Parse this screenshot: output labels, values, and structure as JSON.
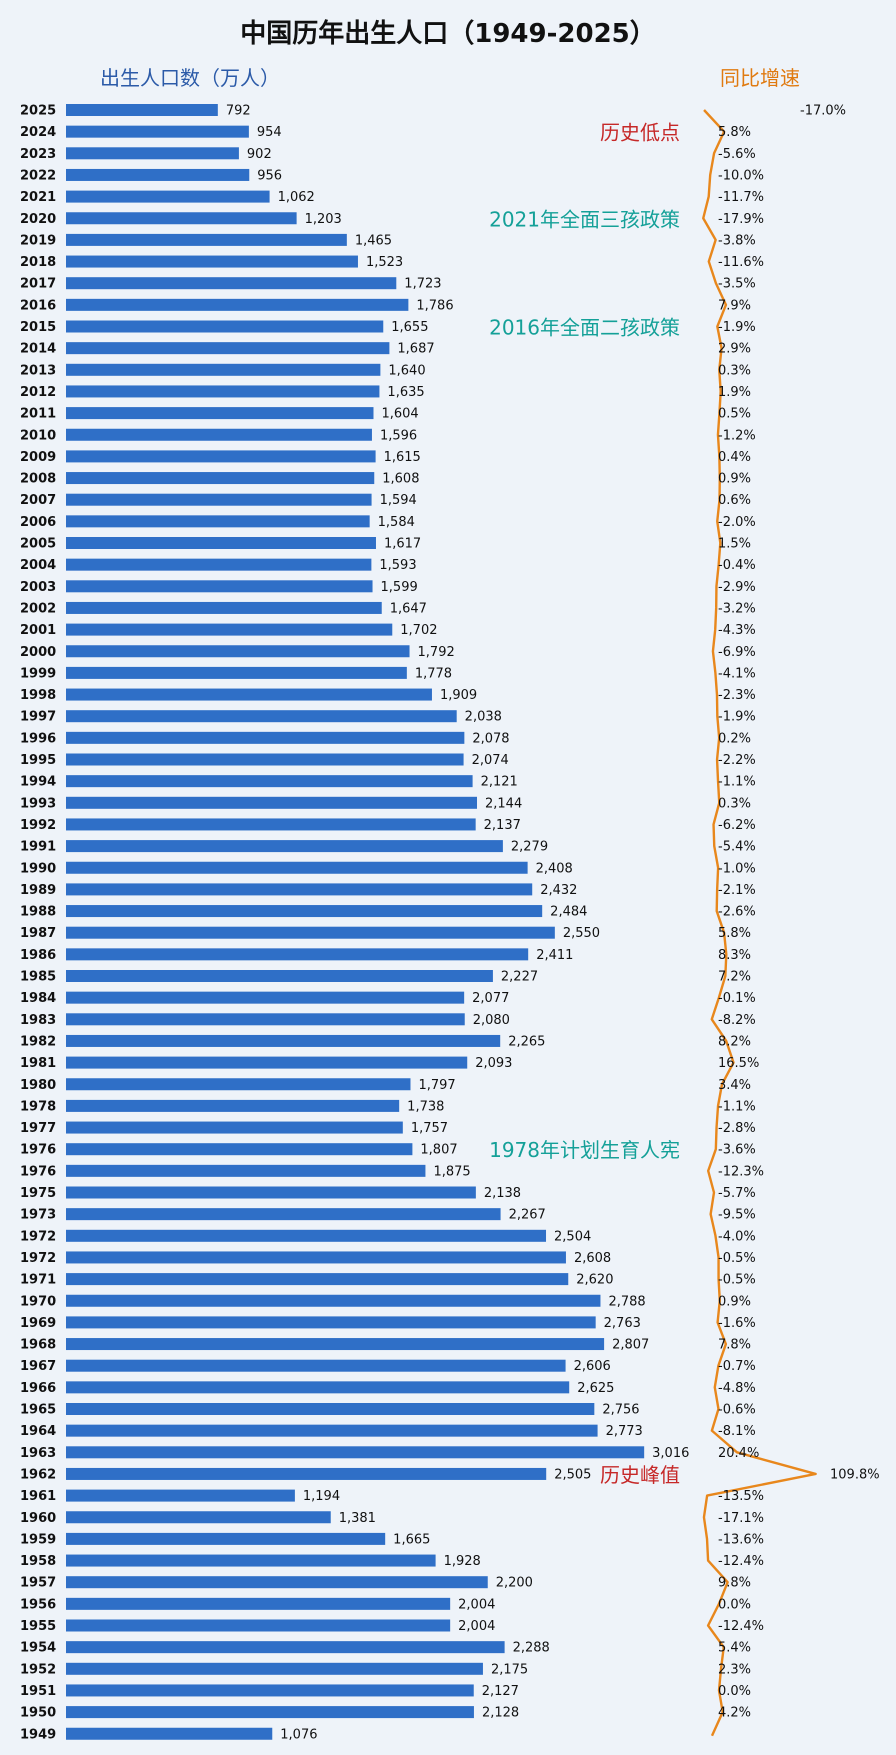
{
  "title": "中国历年出生人口（1949-2025）",
  "chart_data": {
    "type": "bar",
    "orientation": "horizontal",
    "title": "中国历年出生人口（1949-2025）",
    "left_axis_label": "出生人口数（万人）",
    "right_axis_label": "同比增速",
    "categories": [
      "2025",
      "2024",
      "2023",
      "2022",
      "2021",
      "2020",
      "2019",
      "2018",
      "2017",
      "2016",
      "2015",
      "2014",
      "2013",
      "2012",
      "2011",
      "2010",
      "2009",
      "2008",
      "2007",
      "2006",
      "2005",
      "2004",
      "2003",
      "2002",
      "2001",
      "2000",
      "1999",
      "1998",
      "1997",
      "1996",
      "1995",
      "1994",
      "1993",
      "1992",
      "1991",
      "1990",
      "1989",
      "1988",
      "1987",
      "1986",
      "1985",
      "1984",
      "1983",
      "1982",
      "1981",
      "1980",
      "1978",
      "1977",
      "1976",
      "1976",
      "1975",
      "1973",
      "1972",
      "1972",
      "1971",
      "1970",
      "1969",
      "1968",
      "1967",
      "1966",
      "1965",
      "1964",
      "1963",
      "1962",
      "1961",
      "1960",
      "1959",
      "1958",
      "1957",
      "1956",
      "1955",
      "1954",
      "1952",
      "1951",
      "1950",
      "1949"
    ],
    "series": [
      {
        "name": "出生人口数（万人）",
        "values": [
          792,
          954,
          902,
          956,
          1062,
          1203,
          1465,
          1523,
          1723,
          1786,
          1655,
          1687,
          1640,
          1635,
          1604,
          1596,
          1615,
          1608,
          1594,
          1584,
          1617,
          1593,
          1599,
          1647,
          1702,
          1792,
          1778,
          1909,
          2038,
          2078,
          2074,
          2121,
          2144,
          2137,
          2279,
          2408,
          2432,
          2484,
          2550,
          2411,
          2227,
          2077,
          2080,
          2265,
          2093,
          1797,
          1738,
          1757,
          1807,
          1875,
          2138,
          2267,
          2504,
          2608,
          2620,
          2788,
          2763,
          2807,
          2606,
          2625,
          2756,
          2773,
          3016,
          2505,
          1194,
          1381,
          1665,
          1928,
          2200,
          2004,
          2004,
          2288,
          2175,
          2127,
          2128,
          1076
        ],
        "labels": [
          "792",
          "954",
          "902",
          "956",
          "1,062",
          "1,203",
          "1,465",
          "1,523",
          "1,723",
          "1,786",
          "1,655",
          "1,687",
          "1,640",
          "1,635",
          "1,604",
          "1,596",
          "1,615",
          "1,608",
          "1,594",
          "1,584",
          "1,617",
          "1,593",
          "1,599",
          "1,647",
          "1,702",
          "1,792",
          "1,778",
          "1,909",
          "2,038",
          "2,078",
          "2,074",
          "2,121",
          "2,144",
          "2,137",
          "2,279",
          "2,408",
          "2,432",
          "2,484",
          "2,550",
          "2,411",
          "2,227",
          "2,077",
          "2,080",
          "2,265",
          "2,093",
          "1,797",
          "1,738",
          "1,757",
          "1,807",
          "1,875",
          "2,138",
          "2,267",
          "2,504",
          "2,608",
          "2,620",
          "2,788",
          "2,763",
          "2,807",
          "2,606",
          "2,625",
          "2,756",
          "2,773",
          "3,016",
          "2,505",
          "1,194",
          "1,381",
          "1,665",
          "1,928",
          "2,200",
          "2,004",
          "2,004",
          "2,288",
          "2,175",
          "2,127",
          "2,128",
          "1,076"
        ]
      },
      {
        "name": "同比增速",
        "values": [
          -17.0,
          5.8,
          -5.6,
          -10.0,
          -11.7,
          -17.9,
          -3.8,
          -11.6,
          -3.5,
          7.9,
          -1.9,
          2.9,
          0.3,
          1.9,
          0.5,
          -1.2,
          0.4,
          0.9,
          0.6,
          -2.0,
          1.5,
          -0.4,
          -2.9,
          -3.2,
          -4.3,
          -6.9,
          -4.1,
          -2.3,
          -1.9,
          0.2,
          -2.2,
          -1.1,
          0.3,
          -6.2,
          -5.4,
          -1.0,
          -2.1,
          -2.6,
          5.8,
          8.3,
          7.2,
          -0.1,
          -8.2,
          8.2,
          16.5,
          3.4,
          -1.1,
          -2.8,
          -3.6,
          -12.3,
          -5.7,
          -9.5,
          -4.0,
          -0.5,
          -0.5,
          0.9,
          -1.6,
          7.8,
          -0.7,
          -4.8,
          -0.6,
          -8.1,
          20.4,
          109.8,
          -13.5,
          -17.1,
          -13.6,
          -12.4,
          9.8,
          0.0,
          -12.4,
          5.4,
          2.3,
          0.0,
          4.2,
          null
        ],
        "labels": [
          "-17.0%",
          "5.8%",
          "-5.6%",
          "-10.0%",
          "-11.7%",
          "-17.9%",
          "-3.8%",
          "-11.6%",
          "-3.5%",
          "7.9%",
          "-1.9%",
          "2.9%",
          "0.3%",
          "1.9%",
          "0.5%",
          "-1.2%",
          "0.4%",
          "0.9%",
          "0.6%",
          "-2.0%",
          "1.5%",
          "-0.4%",
          "-2.9%",
          "-3.2%",
          "-4.3%",
          "-6.9%",
          "-4.1%",
          "-2.3%",
          "-1.9%",
          "0.2%",
          "-2.2%",
          "-1.1%",
          "0.3%",
          "-6.2%",
          "-5.4%",
          "-1.0%",
          "-2.1%",
          "-2.6%",
          "5.8%",
          "8.3%",
          "7.2%",
          "-0.1%",
          "-8.2%",
          "8.2%",
          "16.5%",
          "3.4%",
          "-1.1%",
          "-2.8%",
          "-3.6%",
          "-12.3%",
          "-5.7%",
          "-9.5%",
          "-4.0%",
          "-0.5%",
          "-0.5%",
          "0.9%",
          "-1.6%",
          "7.8%",
          "-0.7%",
          "-4.8%",
          "-0.6%",
          "-8.1%",
          "20.4%",
          "109.8%",
          "-13.5%",
          "-17.1%",
          "-13.6%",
          "-12.4%",
          "9.8%",
          "0.0%",
          "-12.4%",
          "5.4%",
          "2.3%",
          "0.0%",
          "4.2%",
          ""
        ]
      }
    ],
    "annotations": [
      {
        "text": "历史低点",
        "category_index": 1,
        "color": "#c62828"
      },
      {
        "text": "2021年全面三孩政策",
        "category_index": 5,
        "color": "#14a098"
      },
      {
        "text": "2016年全面二孩政策",
        "category_index": 10,
        "color": "#14a098"
      },
      {
        "text": "1978年计划生育人宪",
        "category_index": 48,
        "color": "#14a098"
      },
      {
        "text": "历史峰值",
        "category_index": 63,
        "color": "#c62828"
      }
    ],
    "colors": {
      "bar": "#2f6fc7",
      "line": "#e8871c",
      "left_label": "#2b5aa8",
      "right_label": "#e07a10"
    }
  }
}
